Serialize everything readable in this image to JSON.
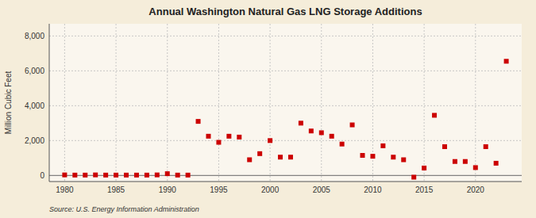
{
  "chart_data": {
    "type": "scatter",
    "title": "Annual Washington Natural Gas LNG Storage Additions",
    "ylabel": "Million Cubic Feet",
    "source": "Source: U.S. Energy Information Administration",
    "color": "#cc0000",
    "marker": "square",
    "grid": true,
    "xlim": [
      1978.5,
      2024.5
    ],
    "ylim": [
      -350,
      8700
    ],
    "xticks": [
      1980,
      1985,
      1990,
      1995,
      2000,
      2005,
      2010,
      2015,
      2020
    ],
    "yticks": [
      0,
      {
        "value": 2000,
        "label": "2,000"
      },
      {
        "value": 4000,
        "label": "4,000"
      },
      {
        "value": 6000,
        "label": "6,000"
      },
      {
        "value": 8000,
        "label": "8,000"
      }
    ],
    "x": [
      1980,
      1981,
      1982,
      1983,
      1984,
      1985,
      1986,
      1987,
      1988,
      1989,
      1990,
      1991,
      1992,
      1993,
      1994,
      1995,
      1996,
      1997,
      1998,
      1999,
      2000,
      2001,
      2002,
      2003,
      2004,
      2005,
      2006,
      2007,
      2008,
      2009,
      2010,
      2011,
      2012,
      2013,
      2014,
      2015,
      2016,
      2017,
      2018,
      2019,
      2020,
      2021,
      2022,
      2023
    ],
    "values": [
      30,
      20,
      20,
      30,
      20,
      20,
      20,
      20,
      20,
      30,
      100,
      20,
      20,
      3100,
      2250,
      1900,
      2250,
      2200,
      900,
      1250,
      2000,
      1050,
      1050,
      3000,
      2550,
      2450,
      2250,
      1800,
      2900,
      1150,
      1100,
      1700,
      1050,
      900,
      -100,
      425,
      3450,
      1650,
      800,
      800,
      450,
      1650,
      700,
      6550
    ]
  }
}
